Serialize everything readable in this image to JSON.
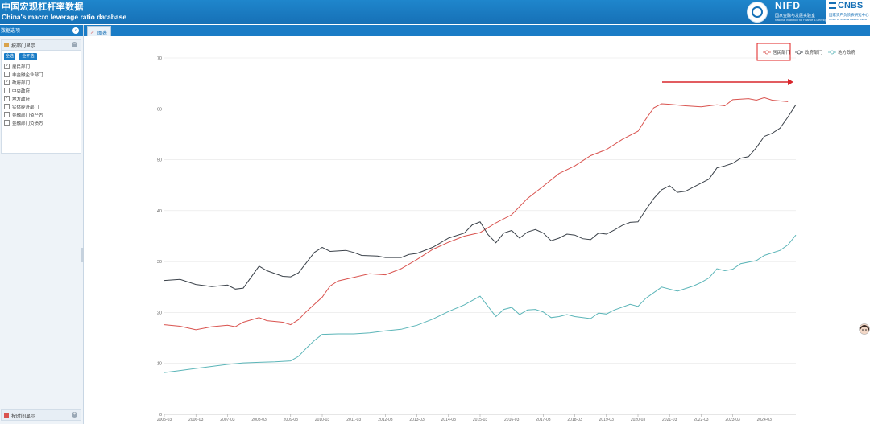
{
  "header": {
    "title_cn": "中国宏观杠杆率数据",
    "title_en": "China's macro leverage ratio database",
    "nifd": "NIFD",
    "nifd_sub": "国家金融与发展实验室",
    "nifd_sub_en": "National Institution for Finance & Development",
    "cnbs": "CNBS",
    "cnbs_sub": "国家资产负债表研究中心",
    "cnbs_sub_en": "Center for National Balance Sheets"
  },
  "sidebar": {
    "header_label": "数据选项",
    "panel_title": "按部门显示",
    "select_all": "全选",
    "select_none": "全不选",
    "sectors": [
      {
        "label": "居民部门",
        "checked": true
      },
      {
        "label": "非金融企业部门",
        "checked": false
      },
      {
        "label": "政府部门",
        "checked": true
      },
      {
        "label": "中央政府",
        "checked": false
      },
      {
        "label": "地方政府",
        "checked": true
      },
      {
        "label": "实体经济部门",
        "checked": false
      },
      {
        "label": "金融部门资产方",
        "checked": false
      },
      {
        "label": "金融部门负债方",
        "checked": false
      }
    ],
    "panel2_title": "按时间显示"
  },
  "tabs": [
    {
      "label": "图表",
      "icon": "line-chart-icon"
    }
  ],
  "colors": {
    "header_blue": "#1670b6",
    "household": "#d9534f",
    "government": "#3a4149",
    "local_government": "#5bb5b8",
    "highlight_box": "#e02020",
    "arrow": "#d9262c"
  },
  "chart_data": {
    "type": "line",
    "ylim": [
      0,
      70
    ],
    "yticks": [
      0,
      10,
      20,
      30,
      40,
      50,
      60,
      70
    ],
    "xticks": [
      "2005-03",
      "2006-03",
      "2007-03",
      "2008-03",
      "2009-03",
      "2010-03",
      "2011-03",
      "2012-03",
      "2013-03",
      "2014-03",
      "2015-03",
      "2016-03",
      "2017-03",
      "2018-03",
      "2019-03",
      "2020-03",
      "2021-03",
      "2022-03",
      "2023-03",
      "2024-03"
    ],
    "x_start": "2005-03",
    "x_end": "2024-12",
    "legend_position": "top-right",
    "series": [
      {
        "name": "居民部门",
        "color": "#d9534f",
        "values": [
          [
            2005.0,
            17.6
          ],
          [
            2005.5,
            17.3
          ],
          [
            2006.0,
            16.6
          ],
          [
            2006.5,
            17.2
          ],
          [
            2007.0,
            17.5
          ],
          [
            2007.25,
            17.2
          ],
          [
            2007.5,
            18.1
          ],
          [
            2008.0,
            19.0
          ],
          [
            2008.25,
            18.4
          ],
          [
            2008.75,
            18.1
          ],
          [
            2009.0,
            17.6
          ],
          [
            2009.25,
            18.6
          ],
          [
            2009.5,
            20.2
          ],
          [
            2010.0,
            23.0
          ],
          [
            2010.25,
            25.2
          ],
          [
            2010.5,
            26.2
          ],
          [
            2011.0,
            26.9
          ],
          [
            2011.5,
            27.6
          ],
          [
            2012.0,
            27.4
          ],
          [
            2012.5,
            28.6
          ],
          [
            2013.0,
            30.4
          ],
          [
            2013.5,
            32.4
          ],
          [
            2014.0,
            33.8
          ],
          [
            2014.5,
            35.0
          ],
          [
            2015.0,
            35.7
          ],
          [
            2015.5,
            37.6
          ],
          [
            2016.0,
            39.2
          ],
          [
            2016.5,
            42.4
          ],
          [
            2017.0,
            44.8
          ],
          [
            2017.5,
            47.3
          ],
          [
            2018.0,
            48.8
          ],
          [
            2018.5,
            50.8
          ],
          [
            2019.0,
            52.0
          ],
          [
            2019.5,
            54.0
          ],
          [
            2020.0,
            55.6
          ],
          [
            2020.25,
            58.0
          ],
          [
            2020.5,
            60.2
          ],
          [
            2020.75,
            61.0
          ],
          [
            2021.0,
            60.9
          ],
          [
            2021.5,
            60.6
          ],
          [
            2022.0,
            60.4
          ],
          [
            2022.5,
            60.8
          ],
          [
            2022.75,
            60.6
          ],
          [
            2023.0,
            61.8
          ],
          [
            2023.5,
            62.0
          ],
          [
            2023.75,
            61.7
          ],
          [
            2024.0,
            62.2
          ],
          [
            2024.25,
            61.7
          ],
          [
            2024.75,
            61.4
          ]
        ]
      },
      {
        "name": "政府部门",
        "color": "#3a4149",
        "values": [
          [
            2005.0,
            26.3
          ],
          [
            2005.5,
            26.5
          ],
          [
            2006.0,
            25.5
          ],
          [
            2006.5,
            25.1
          ],
          [
            2007.0,
            25.4
          ],
          [
            2007.25,
            24.6
          ],
          [
            2007.5,
            24.8
          ],
          [
            2008.0,
            29.1
          ],
          [
            2008.25,
            28.2
          ],
          [
            2008.75,
            27.1
          ],
          [
            2009.0,
            27.0
          ],
          [
            2009.25,
            27.8
          ],
          [
            2009.75,
            31.8
          ],
          [
            2010.0,
            32.8
          ],
          [
            2010.25,
            32.0
          ],
          [
            2010.75,
            32.2
          ],
          [
            2011.0,
            31.8
          ],
          [
            2011.25,
            31.2
          ],
          [
            2011.75,
            31.1
          ],
          [
            2012.0,
            30.8
          ],
          [
            2012.5,
            30.8
          ],
          [
            2012.75,
            31.4
          ],
          [
            2013.0,
            31.6
          ],
          [
            2013.5,
            32.8
          ],
          [
            2014.0,
            34.6
          ],
          [
            2014.5,
            35.6
          ],
          [
            2014.75,
            37.2
          ],
          [
            2015.0,
            37.8
          ],
          [
            2015.25,
            35.3
          ],
          [
            2015.5,
            33.7
          ],
          [
            2015.75,
            35.6
          ],
          [
            2016.0,
            36.1
          ],
          [
            2016.25,
            34.6
          ],
          [
            2016.5,
            35.8
          ],
          [
            2016.75,
            36.3
          ],
          [
            2017.0,
            35.6
          ],
          [
            2017.25,
            34.1
          ],
          [
            2017.5,
            34.6
          ],
          [
            2017.75,
            35.4
          ],
          [
            2018.0,
            35.2
          ],
          [
            2018.25,
            34.5
          ],
          [
            2018.5,
            34.3
          ],
          [
            2018.75,
            35.6
          ],
          [
            2019.0,
            35.4
          ],
          [
            2019.25,
            36.2
          ],
          [
            2019.5,
            37.1
          ],
          [
            2019.75,
            37.7
          ],
          [
            2020.0,
            37.8
          ],
          [
            2020.25,
            40.2
          ],
          [
            2020.5,
            42.4
          ],
          [
            2020.75,
            44.1
          ],
          [
            2021.0,
            44.9
          ],
          [
            2021.25,
            43.6
          ],
          [
            2021.5,
            43.8
          ],
          [
            2021.75,
            44.6
          ],
          [
            2022.0,
            45.4
          ],
          [
            2022.25,
            46.2
          ],
          [
            2022.5,
            48.4
          ],
          [
            2022.75,
            48.8
          ],
          [
            2023.0,
            49.3
          ],
          [
            2023.25,
            50.3
          ],
          [
            2023.5,
            50.6
          ],
          [
            2023.75,
            52.4
          ],
          [
            2024.0,
            54.6
          ],
          [
            2024.25,
            55.2
          ],
          [
            2024.5,
            56.2
          ],
          [
            2024.75,
            58.4
          ],
          [
            2025.0,
            60.8
          ]
        ]
      },
      {
        "name": "地方政府",
        "color": "#5bb5b8",
        "values": [
          [
            2005.0,
            8.2
          ],
          [
            2005.5,
            8.6
          ],
          [
            2006.0,
            9.0
          ],
          [
            2006.5,
            9.4
          ],
          [
            2007.0,
            9.8
          ],
          [
            2007.5,
            10.1
          ],
          [
            2008.0,
            10.2
          ],
          [
            2008.5,
            10.3
          ],
          [
            2009.0,
            10.5
          ],
          [
            2009.25,
            11.4
          ],
          [
            2009.5,
            13.0
          ],
          [
            2009.75,
            14.5
          ],
          [
            2010.0,
            15.7
          ],
          [
            2010.5,
            15.8
          ],
          [
            2011.0,
            15.8
          ],
          [
            2011.5,
            16.0
          ],
          [
            2012.0,
            16.4
          ],
          [
            2012.5,
            16.7
          ],
          [
            2013.0,
            17.5
          ],
          [
            2013.5,
            18.7
          ],
          [
            2014.0,
            20.2
          ],
          [
            2014.5,
            21.5
          ],
          [
            2015.0,
            23.2
          ],
          [
            2015.25,
            21.2
          ],
          [
            2015.5,
            19.2
          ],
          [
            2015.75,
            20.6
          ],
          [
            2016.0,
            21.0
          ],
          [
            2016.25,
            19.6
          ],
          [
            2016.5,
            20.5
          ],
          [
            2016.75,
            20.6
          ],
          [
            2017.0,
            20.1
          ],
          [
            2017.25,
            19.0
          ],
          [
            2017.5,
            19.2
          ],
          [
            2017.75,
            19.6
          ],
          [
            2018.0,
            19.2
          ],
          [
            2018.5,
            18.8
          ],
          [
            2018.75,
            19.9
          ],
          [
            2019.0,
            19.7
          ],
          [
            2019.25,
            20.5
          ],
          [
            2019.75,
            21.6
          ],
          [
            2020.0,
            21.2
          ],
          [
            2020.25,
            22.8
          ],
          [
            2020.75,
            25.0
          ],
          [
            2021.0,
            24.6
          ],
          [
            2021.25,
            24.2
          ],
          [
            2021.75,
            25.2
          ],
          [
            2022.0,
            25.9
          ],
          [
            2022.25,
            26.8
          ],
          [
            2022.5,
            28.6
          ],
          [
            2022.75,
            28.2
          ],
          [
            2023.0,
            28.5
          ],
          [
            2023.25,
            29.6
          ],
          [
            2023.75,
            30.2
          ],
          [
            2024.0,
            31.2
          ],
          [
            2024.5,
            32.2
          ],
          [
            2024.75,
            33.3
          ],
          [
            2025.0,
            35.2
          ]
        ]
      }
    ]
  }
}
